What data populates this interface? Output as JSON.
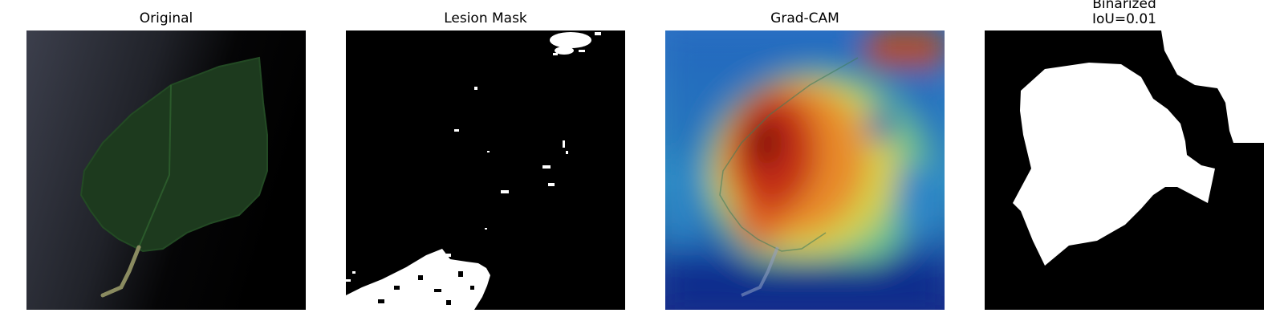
{
  "panels": [
    {
      "title": "Original",
      "image": "original-leaf-photo"
    },
    {
      "title": "Lesion Mask",
      "image": "binary-lesion-mask"
    },
    {
      "title": "Grad-CAM",
      "image": "gradcam-heatmap-overlay"
    },
    {
      "title": "Binarized\nIoU=0.01",
      "image": "binarized-gradcam-mask"
    }
  ],
  "colors": {
    "background": "#ffffff",
    "mask_foreground": "#ffffff",
    "mask_background": "#000000",
    "leaf": "#1d3a1e",
    "cam_hot": "#b8140f",
    "cam_cold": "#132f8a"
  }
}
